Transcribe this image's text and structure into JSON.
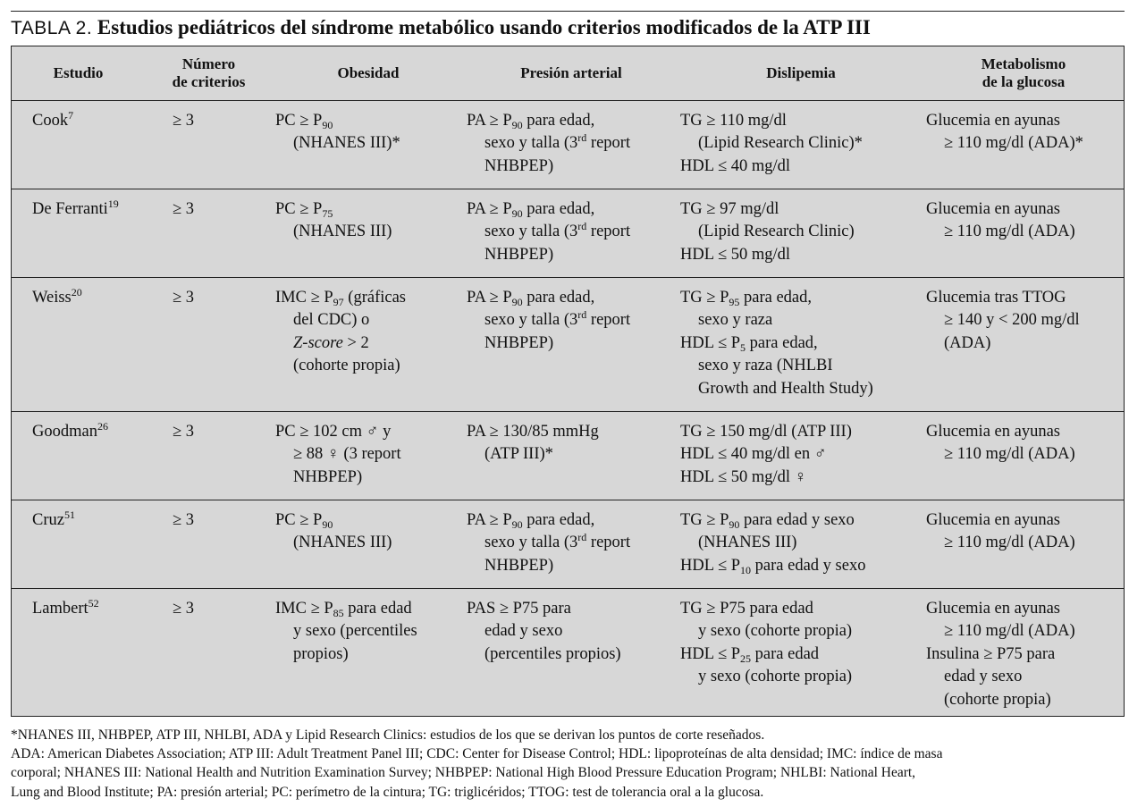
{
  "title": {
    "label": "TABLA 2.",
    "text": "Estudios pediátricos del síndrome metabólico usando criterios modificados de la ATP III"
  },
  "table": {
    "headers": {
      "estudio": "Estudio",
      "numero_1": "Número",
      "numero_2": "de criterios",
      "obesidad": "Obesidad",
      "presion": "Presión arterial",
      "dislipemia": "Dislipemia",
      "glucosa_1": "Metabolismo",
      "glucosa_2": "de la glucosa"
    },
    "rows": [
      {
        "study": "Cook",
        "ref": "7",
        "num": "≥ 3",
        "ob": [
          "PC ≥ P",
          "90",
          "(NHANES III)*"
        ],
        "pa": [
          "PA ≥ P",
          "90",
          " para edad,",
          "sexo y talla (3",
          "rd",
          " report",
          "NHBPEP)"
        ],
        "dl": [
          "TG ≥ 110 mg/dl",
          "(Lipid Research Clinic)*",
          "HDL ≤ 40 mg/dl"
        ],
        "gl": [
          "Glucemia en ayunas",
          "≥ 110 mg/dl (ADA)*"
        ]
      },
      {
        "study": "De Ferranti",
        "ref": "19",
        "num": "≥ 3",
        "ob": [
          "PC ≥ P",
          "75",
          "(NHANES III)"
        ],
        "pa": [
          "PA ≥ P",
          "90",
          " para edad,",
          "sexo y talla (3",
          "rd",
          " report",
          "NHBPEP)"
        ],
        "dl": [
          "TG ≥ 97 mg/dl",
          "(Lipid Research Clinic)",
          "HDL ≤ 50 mg/dl"
        ],
        "gl": [
          "Glucemia en ayunas",
          "≥ 110 mg/dl (ADA)"
        ]
      },
      {
        "study": "Weiss",
        "ref": "20",
        "num": "≥ 3",
        "ob": [
          "IMC ≥ P",
          "97",
          " (gráficas",
          "del CDC) o",
          "Z-score",
          " > 2",
          "(cohorte propia)"
        ],
        "pa": [
          "PA ≥ P",
          "90",
          " para edad,",
          "sexo y talla (3",
          "rd",
          " report",
          "NHBPEP)"
        ],
        "dl": [
          "TG ≥ P",
          "95",
          " para edad,",
          "sexo y raza",
          "HDL ≤ P",
          "5",
          " para edad,",
          "sexo y raza (NHLBI",
          "Growth and Health Study)"
        ],
        "gl": [
          "Glucemia tras TTOG",
          "≥ 140 y < 200 mg/dl",
          "(ADA)"
        ]
      },
      {
        "study": "Goodman",
        "ref": "26",
        "num": "≥ 3",
        "ob": [
          "PC ≥ 102 cm ♂ y",
          "≥ 88 ♀ (3 report",
          "NHBPEP)"
        ],
        "pa": [
          "PA ≥ 130/85 mmHg",
          "(ATP III)*"
        ],
        "dl": [
          "TG ≥ 150 mg/dl (ATP III)",
          "HDL ≤ 40 mg/dl en ♂",
          "HDL ≤ 50 mg/dl ♀"
        ],
        "gl": [
          "Glucemia en ayunas",
          "≥ 110 mg/dl (ADA)"
        ]
      },
      {
        "study": "Cruz",
        "ref": "51",
        "num": "≥ 3",
        "ob": [
          "PC ≥ P",
          "90",
          "(NHANES III)"
        ],
        "pa": [
          "PA ≥ P",
          "90",
          " para edad,",
          "sexo y talla (3",
          "rd",
          " report",
          "NHBPEP)"
        ],
        "dl": [
          "TG ≥ P",
          "90",
          " para edad y sexo",
          "(NHANES III)",
          "HDL ≤ P",
          "10",
          " para edad y sexo"
        ],
        "gl": [
          "Glucemia en ayunas",
          "≥ 110 mg/dl (ADA)"
        ]
      },
      {
        "study": "Lambert",
        "ref": "52",
        "num": "≥ 3",
        "ob": [
          "IMC ≥ P",
          "85",
          " para edad",
          "y sexo (percentiles",
          "propios)"
        ],
        "pa": [
          "PAS ≥ P75 para",
          "edad y sexo",
          "(percentiles propios)"
        ],
        "dl": [
          "TG ≥ P75 para edad",
          "y sexo (cohorte propia)",
          "HDL ≤ P",
          "25",
          " para edad",
          "y sexo (cohorte propia)"
        ],
        "gl": [
          "Glucemia en ayunas",
          "≥ 110 mg/dl (ADA)",
          "Insulina ≥ P75 para",
          "edad y sexo",
          "(cohorte propia)"
        ]
      }
    ]
  },
  "footnotes": [
    "*NHANES III, NHBPEP, ATP III, NHLBI, ADA y Lipid Research Clinics: estudios de los que se derivan los puntos de corte reseñados.",
    "ADA: American Diabetes Association; ATP III: Adult Treatment Panel III; CDC: Center for Disease Control; HDL: lipoproteínas de alta densidad; IMC: índice de masa",
    "corporal; NHANES III: National Health and Nutrition Examination Survey; NHBPEP: National High Blood Pressure Education Program; NHLBI: National Heart,",
    "Lung and Blood Institute; PA: presión arterial; PC: perímetro de la cintura; TG: triglicéridos; TTOG: test de tolerancia oral a la glucosa."
  ]
}
